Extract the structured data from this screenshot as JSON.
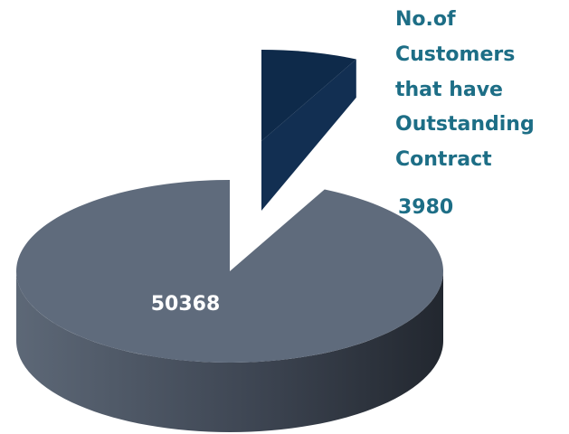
{
  "chart_data": {
    "type": "pie",
    "style": "3d-exploded",
    "slices": [
      {
        "label": "No.of Customers that have Outstanding Contract",
        "value": 3980,
        "value_label": "3980",
        "color": "#0e2a4a",
        "exploded": true
      },
      {
        "label": "",
        "value": 50368,
        "value_label": "50368",
        "color": "#5f6b7c",
        "exploded": false
      }
    ],
    "callout_lines": [
      "No.of",
      "Customers",
      "that have",
      "Outstanding",
      "Contract"
    ],
    "callout_color": "#1d6e86",
    "inner_label_color": "#ffffff"
  }
}
